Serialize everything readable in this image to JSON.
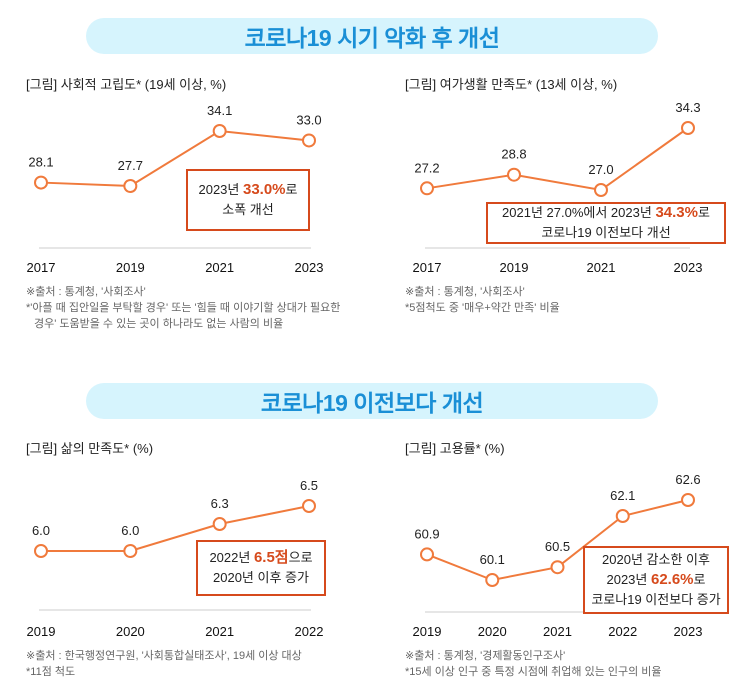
{
  "sections": [
    {
      "title": "코로나19 시기 악화 후 개선"
    },
    {
      "title": "코로나19 이전보다 개선"
    }
  ],
  "colors": {
    "line": "#f07a3c",
    "accent": "#d64a1c",
    "banner_bg": "#d6f4fd",
    "banner_text": "#1a8fd6",
    "axis": "#cccccc"
  },
  "chart_data": [
    {
      "type": "line",
      "title": "[그림] 사회적 고립도* (19세 이상, %)",
      "categories": [
        "2017",
        "2019",
        "2021",
        "2023"
      ],
      "values": [
        28.1,
        27.7,
        34.1,
        33.0
      ],
      "labels": [
        "28.1",
        "27.7",
        "34.1",
        "33.0"
      ],
      "xlabel": "",
      "ylabel": "",
      "grid": false,
      "callout": {
        "lines": [
          [
            "2023년 ",
            "33.0%",
            "로"
          ],
          [
            "소폭 개선",
            "",
            ""
          ]
        ]
      },
      "notes": [
        "※출처 : 통계청, '사회조사'",
        "*'아플 때 집안일을 부탁할 경우' 또는 '힘들 때 이야기할 상대가 필요한",
        "경우' 도움받을 수 있는 곳이 하나라도 없는 사람의 비율"
      ]
    },
    {
      "type": "line",
      "title": "[그림] 여가생활 만족도* (13세 이상, %)",
      "categories": [
        "2017",
        "2019",
        "2021",
        "2023"
      ],
      "values": [
        27.2,
        28.8,
        27.0,
        34.3
      ],
      "labels": [
        "27.2",
        "28.8",
        "27.0",
        "34.3"
      ],
      "xlabel": "",
      "ylabel": "",
      "grid": false,
      "callout": {
        "lines": [
          [
            "2021년 27.0%에서 2023년 ",
            "34.3%",
            "로"
          ],
          [
            "코로나19 이전보다 개선",
            "",
            ""
          ]
        ]
      },
      "notes": [
        "※출처 : 통계청, '사회조사'",
        "*5점척도 중 '매우+약간 만족' 비율"
      ]
    },
    {
      "type": "line",
      "title": "[그림] 삶의 만족도* (%)",
      "categories": [
        "2019",
        "2020",
        "2021",
        "2022"
      ],
      "values": [
        6.0,
        6.0,
        6.3,
        6.5
      ],
      "labels": [
        "6.0",
        "6.0",
        "6.3",
        "6.5"
      ],
      "xlabel": "",
      "ylabel": "",
      "grid": false,
      "callout": {
        "lines": [
          [
            "2022년 ",
            "6.5점",
            "으로"
          ],
          [
            "2020년 이후 증가",
            "",
            ""
          ]
        ]
      },
      "notes": [
        "※출처 : 한국행정연구원, '사회통합실태조사', 19세 이상 대상",
        "*11점 척도"
      ]
    },
    {
      "type": "line",
      "title": "[그림] 고용률* (%)",
      "categories": [
        "2019",
        "2020",
        "2021",
        "2022",
        "2023"
      ],
      "values": [
        60.9,
        60.1,
        60.5,
        62.1,
        62.6
      ],
      "labels": [
        "60.9",
        "60.1",
        "60.5",
        "62.1",
        "62.6"
      ],
      "xlabel": "",
      "ylabel": "",
      "grid": false,
      "callout": {
        "lines": [
          [
            "2020년 감소한 이후",
            "",
            ""
          ],
          [
            "2023년 ",
            "62.6%",
            "로"
          ],
          [
            "코로나19 이전보다 증가",
            "",
            ""
          ]
        ]
      },
      "notes": [
        "※출처 : 통계청, '경제활동인구조사'",
        "*15세 이상 인구 중 특정 시점에 취업해 있는 인구의 비율"
      ]
    }
  ]
}
